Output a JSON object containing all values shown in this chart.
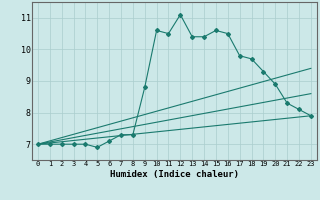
{
  "xlabel": "Humidex (Indice chaleur)",
  "ylabel": "",
  "background_color": "#cce8e8",
  "line_color": "#1a7a6e",
  "xlim": [
    -0.5,
    23.5
  ],
  "ylim": [
    6.5,
    11.5
  ],
  "yticks": [
    7,
    8,
    9,
    10,
    11
  ],
  "xticks": [
    0,
    1,
    2,
    3,
    4,
    5,
    6,
    7,
    8,
    9,
    10,
    11,
    12,
    13,
    14,
    15,
    16,
    17,
    18,
    19,
    20,
    21,
    22,
    23
  ],
  "series1_x": [
    0,
    1,
    2,
    3,
    4,
    5,
    6,
    7,
    8,
    9,
    10,
    11,
    12,
    13,
    14,
    15,
    16,
    17,
    18,
    19,
    20,
    21,
    22,
    23
  ],
  "series1_y": [
    7.0,
    7.0,
    7.0,
    7.0,
    7.0,
    6.9,
    7.1,
    7.3,
    7.3,
    8.8,
    10.6,
    10.5,
    11.1,
    10.4,
    10.4,
    10.6,
    10.5,
    9.8,
    9.7,
    9.3,
    8.9,
    8.3,
    8.1,
    7.9
  ],
  "series2_x": [
    0,
    23
  ],
  "series2_y": [
    7.0,
    9.4
  ],
  "series3_x": [
    0,
    23
  ],
  "series3_y": [
    7.0,
    8.6
  ],
  "series4_x": [
    0,
    23
  ],
  "series4_y": [
    7.0,
    7.9
  ]
}
